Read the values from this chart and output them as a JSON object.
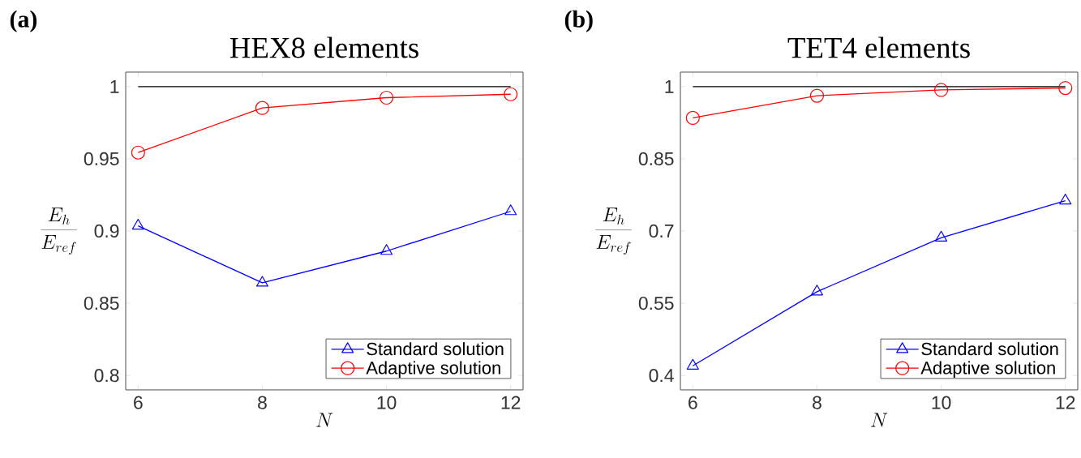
{
  "chart_data": [
    {
      "type": "line",
      "title": "HEX8 elements",
      "xlabel": "N",
      "ylabel": "\\frac{E_h}{E_{ref}}",
      "annotations": [
        "(a)"
      ],
      "x": [
        6,
        8,
        10,
        12
      ],
      "xlim": [
        5.8,
        12.2
      ],
      "xticks": [
        6,
        8,
        10,
        12
      ],
      "ylim": [
        0.79,
        1.01
      ],
      "yticks": [
        0.8,
        0.85,
        0.9,
        0.95,
        1
      ],
      "legend": "bottom right",
      "line_style": "solid",
      "series": [
        {
          "name": "Standard solution",
          "color": "#0000ff",
          "marker": "triangle",
          "values": [
            0.9036,
            0.8641,
            0.8861,
            0.9136
          ]
        },
        {
          "name": "Adaptive solution",
          "color": "#ff0000",
          "marker": "circle",
          "values": [
            0.9543,
            0.9852,
            0.9923,
            0.9947
          ]
        }
      ],
      "ref_lines": [
        {
          "axis": "y",
          "value": 1,
          "color": "#000000"
        }
      ]
    },
    {
      "type": "line",
      "title": "TET4 elements",
      "xlabel": "N",
      "ylabel": "\\frac{E_h}{E_{ref}}",
      "annotations": [
        "(b)"
      ],
      "x": [
        6,
        8,
        10,
        12
      ],
      "xlim": [
        5.8,
        12.2
      ],
      "xticks": [
        6,
        8,
        10,
        12
      ],
      "ylim": [
        0.37,
        1.03
      ],
      "yticks": [
        0.4,
        0.55,
        0.7,
        0.85,
        1
      ],
      "legend": "bottom right",
      "line_style": "solid",
      "series": [
        {
          "name": "Standard solution",
          "color": "#0000ff",
          "marker": "triangle",
          "values": [
            0.42,
            0.574,
            0.686,
            0.763
          ]
        },
        {
          "name": "Adaptive solution",
          "color": "#ff0000",
          "marker": "circle",
          "values": [
            0.935,
            0.981,
            0.993,
            0.997
          ]
        }
      ],
      "ref_lines": [
        {
          "axis": "y",
          "value": 1,
          "color": "#000000"
        }
      ]
    }
  ]
}
